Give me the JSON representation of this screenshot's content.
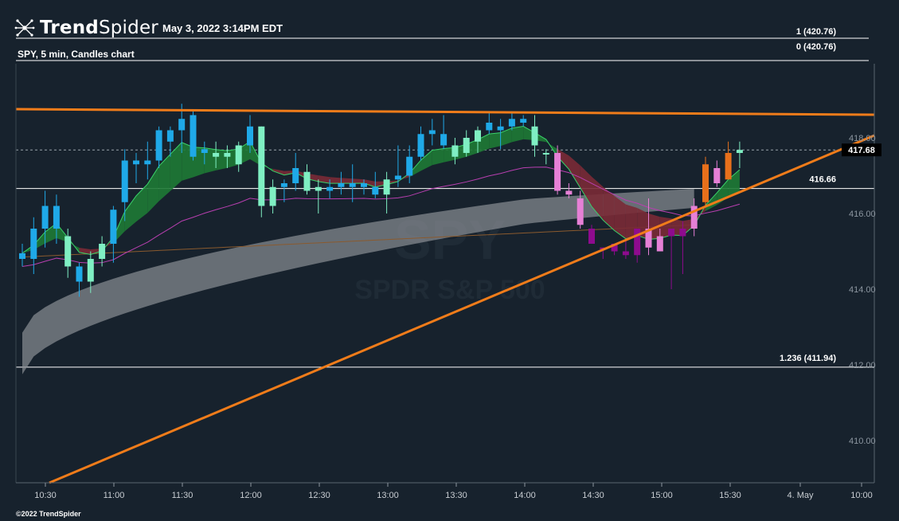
{
  "header": {
    "logo_text_bold": "Trend",
    "logo_text_light": "Spider",
    "timestamp": "May 3, 2022 3:14PM EDT",
    "subtitle": "SPY, 5 min, Candles chart",
    "watermark_symbol": "SPY",
    "watermark_name": "SPDR S&P 500"
  },
  "footer": {
    "copyright": "©2022 TrendSpider"
  },
  "colors": {
    "background": "#17222d",
    "bull_cyan": "#1fa9e8",
    "bull_light": "#7fefc3",
    "bear_pink": "#e680d6",
    "bear_purple": "#8e0b8e",
    "bull_orange": "#e8701b",
    "trendline": "#f07c1a",
    "ribbon_bull": "#1e7a35",
    "ribbon_bear": "#7a2a36",
    "cloud": "#8a8f94"
  },
  "chart_data": {
    "type": "candlestick",
    "symbol": "SPY",
    "interval": "5 min",
    "ylim": [
      409.0,
      419.2
    ],
    "y_ticks": [
      "418.00",
      "416.00",
      "414.00",
      "412.00",
      "410.00"
    ],
    "x_ticks": [
      "10:30",
      "11:00",
      "11:30",
      "12:00",
      "12:30",
      "13:00",
      "13:30",
      "14:00",
      "14:30",
      "15:00",
      "15:30",
      "4. May",
      "10:00"
    ],
    "last_price": "417.68",
    "levels": [
      {
        "label": "1 (420.76)",
        "value": 420.76
      },
      {
        "label": "0 (420.76)",
        "value": 420.76
      },
      {
        "label": "416.66",
        "value": 416.66
      },
      {
        "label": "1.236 (411.94)",
        "value": 411.94
      }
    ],
    "trendlines": [
      {
        "name": "resistance",
        "from": [
          "10:00",
          418.75
        ],
        "to": [
          "10:00 (4. May)",
          418.58
        ]
      },
      {
        "name": "support",
        "from": [
          "10:25",
          408.9
        ],
        "to": [
          "10:05 (4. May)",
          418.0
        ]
      }
    ],
    "candles": [
      {
        "o": 414.8,
        "h": 415.2,
        "l": 414.6,
        "c": 414.95,
        "color": "bull_cyan"
      },
      {
        "o": 414.8,
        "h": 415.9,
        "l": 414.4,
        "c": 415.6,
        "color": "bull_cyan"
      },
      {
        "o": 415.6,
        "h": 416.6,
        "l": 415.1,
        "c": 416.2,
        "color": "bull_cyan"
      },
      {
        "o": 415.6,
        "h": 416.5,
        "l": 415.2,
        "c": 416.2,
        "color": "bull_cyan"
      },
      {
        "o": 415.4,
        "h": 415.6,
        "l": 414.3,
        "c": 414.6,
        "color": "bull_light"
      },
      {
        "o": 414.6,
        "h": 414.7,
        "l": 413.8,
        "c": 414.2,
        "color": "bull_cyan"
      },
      {
        "o": 414.2,
        "h": 415.0,
        "l": 413.9,
        "c": 414.8,
        "color": "bull_light"
      },
      {
        "o": 414.8,
        "h": 415.4,
        "l": 414.6,
        "c": 415.2,
        "color": "bull_light"
      },
      {
        "o": 415.2,
        "h": 416.2,
        "l": 414.7,
        "c": 416.1,
        "color": "bull_cyan"
      },
      {
        "o": 416.3,
        "h": 417.7,
        "l": 415.8,
        "c": 417.4,
        "color": "bull_cyan"
      },
      {
        "o": 417.4,
        "h": 417.6,
        "l": 416.8,
        "c": 417.3,
        "color": "bull_cyan"
      },
      {
        "o": 417.3,
        "h": 417.9,
        "l": 416.9,
        "c": 417.4,
        "color": "bull_cyan"
      },
      {
        "o": 417.4,
        "h": 418.3,
        "l": 417.2,
        "c": 418.2,
        "color": "bull_cyan"
      },
      {
        "o": 417.9,
        "h": 418.3,
        "l": 417.5,
        "c": 418.2,
        "color": "bull_cyan"
      },
      {
        "o": 418.2,
        "h": 418.9,
        "l": 417.6,
        "c": 418.5,
        "color": "bull_cyan"
      },
      {
        "o": 418.6,
        "h": 418.7,
        "l": 417.4,
        "c": 417.5,
        "color": "bull_cyan"
      },
      {
        "o": 417.6,
        "h": 417.9,
        "l": 417.3,
        "c": 417.7,
        "color": "bull_cyan"
      },
      {
        "o": 417.5,
        "h": 417.9,
        "l": 417.2,
        "c": 417.6,
        "color": "bull_light"
      },
      {
        "o": 417.5,
        "h": 417.8,
        "l": 417.2,
        "c": 417.6,
        "color": "bull_light"
      },
      {
        "o": 417.3,
        "h": 417.9,
        "l": 417.1,
        "c": 417.8,
        "color": "bull_light"
      },
      {
        "o": 417.8,
        "h": 418.6,
        "l": 417.6,
        "c": 418.3,
        "color": "bull_cyan"
      },
      {
        "o": 418.3,
        "h": 418.3,
        "l": 415.9,
        "c": 416.2,
        "color": "bull_light"
      },
      {
        "o": 416.2,
        "h": 416.9,
        "l": 416.0,
        "c": 416.7,
        "color": "bull_light"
      },
      {
        "o": 416.7,
        "h": 416.9,
        "l": 416.3,
        "c": 416.8,
        "color": "bull_cyan"
      },
      {
        "o": 416.8,
        "h": 417.6,
        "l": 416.6,
        "c": 417.2,
        "color": "bull_cyan"
      },
      {
        "o": 417.1,
        "h": 417.3,
        "l": 416.5,
        "c": 416.6,
        "color": "bull_light"
      },
      {
        "o": 416.6,
        "h": 416.9,
        "l": 416.0,
        "c": 416.7,
        "color": "bull_light"
      },
      {
        "o": 416.6,
        "h": 416.9,
        "l": 416.4,
        "c": 416.7,
        "color": "bull_cyan"
      },
      {
        "o": 416.7,
        "h": 417.1,
        "l": 416.5,
        "c": 416.8,
        "color": "bull_cyan"
      },
      {
        "o": 416.7,
        "h": 417.3,
        "l": 416.3,
        "c": 416.8,
        "color": "bull_cyan"
      },
      {
        "o": 416.7,
        "h": 416.9,
        "l": 416.5,
        "c": 416.8,
        "color": "bull_cyan"
      },
      {
        "o": 416.7,
        "h": 417.1,
        "l": 416.4,
        "c": 416.5,
        "color": "bull_cyan"
      },
      {
        "o": 416.5,
        "h": 417.1,
        "l": 416.0,
        "c": 416.9,
        "color": "bull_light"
      },
      {
        "o": 416.9,
        "h": 417.8,
        "l": 416.7,
        "c": 417.0,
        "color": "bull_cyan"
      },
      {
        "o": 417.0,
        "h": 417.8,
        "l": 416.8,
        "c": 417.5,
        "color": "bull_cyan"
      },
      {
        "o": 417.5,
        "h": 418.3,
        "l": 417.4,
        "c": 418.1,
        "color": "bull_cyan"
      },
      {
        "o": 418.1,
        "h": 418.5,
        "l": 417.8,
        "c": 418.2,
        "color": "bull_cyan"
      },
      {
        "o": 418.1,
        "h": 418.6,
        "l": 417.7,
        "c": 417.8,
        "color": "bull_cyan"
      },
      {
        "o": 417.5,
        "h": 418.0,
        "l": 417.3,
        "c": 417.8,
        "color": "bull_light"
      },
      {
        "o": 417.6,
        "h": 418.2,
        "l": 417.5,
        "c": 418.0,
        "color": "bull_light"
      },
      {
        "o": 417.9,
        "h": 418.3,
        "l": 417.6,
        "c": 418.2,
        "color": "bull_light"
      },
      {
        "o": 418.2,
        "h": 418.7,
        "l": 418.1,
        "c": 418.4,
        "color": "bull_cyan"
      },
      {
        "o": 418.3,
        "h": 418.5,
        "l": 417.7,
        "c": 418.2,
        "color": "bull_cyan"
      },
      {
        "o": 418.3,
        "h": 418.7,
        "l": 418.2,
        "c": 418.5,
        "color": "bull_cyan"
      },
      {
        "o": 418.5,
        "h": 418.6,
        "l": 418.3,
        "c": 418.4,
        "color": "bull_cyan"
      },
      {
        "o": 418.3,
        "h": 418.6,
        "l": 417.5,
        "c": 417.8,
        "color": "bull_light"
      },
      {
        "o": 417.6,
        "h": 417.7,
        "l": 417.3,
        "c": 417.6,
        "color": "bull_light"
      },
      {
        "o": 417.6,
        "h": 417.8,
        "l": 416.5,
        "c": 416.6,
        "color": "bear_pink"
      },
      {
        "o": 416.6,
        "h": 416.8,
        "l": 416.4,
        "c": 416.5,
        "color": "bear_pink"
      },
      {
        "o": 416.4,
        "h": 416.6,
        "l": 415.6,
        "c": 415.7,
        "color": "bear_pink"
      },
      {
        "o": 415.6,
        "h": 415.7,
        "l": 415.2,
        "c": 415.2,
        "color": "bear_purple"
      },
      {
        "o": 415.1,
        "h": 415.1,
        "l": 414.8,
        "c": 415.1,
        "color": "bear_purple"
      },
      {
        "o": 415.2,
        "h": 415.2,
        "l": 414.9,
        "c": 415.0,
        "color": "bear_purple"
      },
      {
        "o": 415.0,
        "h": 415.3,
        "l": 414.8,
        "c": 414.9,
        "color": "bear_purple"
      },
      {
        "o": 414.9,
        "h": 415.6,
        "l": 414.7,
        "c": 415.6,
        "color": "bear_purple"
      },
      {
        "o": 415.6,
        "h": 416.4,
        "l": 414.9,
        "c": 415.1,
        "color": "bear_pink"
      },
      {
        "o": 415.0,
        "h": 415.6,
        "l": 415.0,
        "c": 415.4,
        "color": "bear_pink"
      },
      {
        "o": 415.4,
        "h": 415.6,
        "l": 414.0,
        "c": 415.6,
        "color": "bear_purple"
      },
      {
        "o": 415.6,
        "h": 415.8,
        "l": 414.4,
        "c": 415.4,
        "color": "bear_purple"
      },
      {
        "o": 415.6,
        "h": 416.4,
        "l": 415.4,
        "c": 416.2,
        "color": "bear_pink"
      },
      {
        "o": 416.3,
        "h": 417.5,
        "l": 416.2,
        "c": 417.3,
        "color": "bull_orange"
      },
      {
        "o": 416.8,
        "h": 417.4,
        "l": 416.7,
        "c": 417.2,
        "color": "bear_pink"
      },
      {
        "o": 416.9,
        "h": 417.9,
        "l": 416.9,
        "c": 417.6,
        "color": "bull_orange"
      },
      {
        "o": 417.6,
        "h": 417.9,
        "l": 417.2,
        "c": 417.68,
        "color": "bull_light"
      }
    ]
  }
}
